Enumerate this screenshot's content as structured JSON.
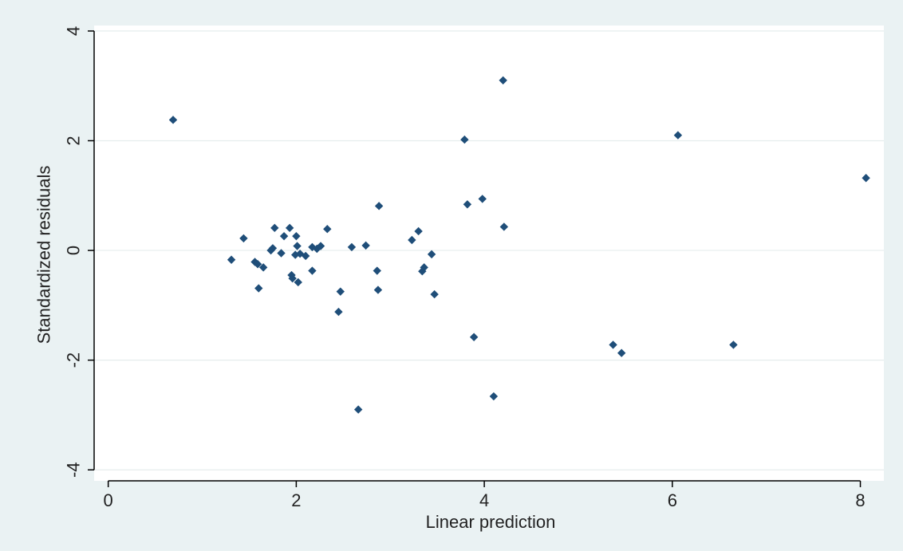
{
  "colors": {
    "outer_background": "#eaf2f3",
    "plot_background": "#ffffff",
    "gridline": "#e6eded",
    "axis": "#000000",
    "marker": "#1f4e79"
  },
  "chart_data": {
    "type": "scatter",
    "title": "",
    "xlabel": "Linear prediction",
    "ylabel": "Standardized residuals",
    "xlim": [
      -0.15,
      8.25
    ],
    "ylim": [
      -4.2,
      4.1
    ],
    "xticks": [
      0,
      2,
      4,
      6,
      8
    ],
    "xtick_labels": [
      "0",
      "2",
      "4",
      "6",
      "8"
    ],
    "yticks": [
      -4,
      -2,
      0,
      2,
      4
    ],
    "ytick_labels": [
      "-4",
      "-2",
      "0",
      "2",
      "4"
    ],
    "grid": "horizontal",
    "legend": "none",
    "marker": "diamond",
    "points": [
      {
        "x": 0.69,
        "y": 2.38
      },
      {
        "x": 1.31,
        "y": -0.17
      },
      {
        "x": 1.44,
        "y": 0.22
      },
      {
        "x": 1.56,
        "y": -0.21
      },
      {
        "x": 1.59,
        "y": -0.25
      },
      {
        "x": 1.6,
        "y": -0.69
      },
      {
        "x": 1.65,
        "y": -0.31
      },
      {
        "x": 1.73,
        "y": 0.0
      },
      {
        "x": 1.75,
        "y": 0.04
      },
      {
        "x": 1.77,
        "y": 0.41
      },
      {
        "x": 1.84,
        "y": -0.05
      },
      {
        "x": 1.87,
        "y": 0.26
      },
      {
        "x": 1.93,
        "y": 0.41
      },
      {
        "x": 1.95,
        "y": -0.45
      },
      {
        "x": 1.96,
        "y": -0.51
      },
      {
        "x": 1.99,
        "y": -0.08
      },
      {
        "x": 2.0,
        "y": 0.26
      },
      {
        "x": 2.01,
        "y": 0.08
      },
      {
        "x": 2.02,
        "y": -0.58
      },
      {
        "x": 2.04,
        "y": -0.06
      },
      {
        "x": 2.1,
        "y": -0.1
      },
      {
        "x": 2.17,
        "y": -0.37
      },
      {
        "x": 2.17,
        "y": 0.06
      },
      {
        "x": 2.22,
        "y": 0.03
      },
      {
        "x": 2.26,
        "y": 0.08
      },
      {
        "x": 2.33,
        "y": 0.39
      },
      {
        "x": 2.45,
        "y": -1.12
      },
      {
        "x": 2.47,
        "y": -0.75
      },
      {
        "x": 2.59,
        "y": 0.06
      },
      {
        "x": 2.66,
        "y": -2.9
      },
      {
        "x": 2.74,
        "y": 0.09
      },
      {
        "x": 2.86,
        "y": -0.37
      },
      {
        "x": 2.87,
        "y": -0.72
      },
      {
        "x": 2.88,
        "y": 0.81
      },
      {
        "x": 3.23,
        "y": 0.19
      },
      {
        "x": 3.3,
        "y": 0.35
      },
      {
        "x": 3.34,
        "y": -0.38
      },
      {
        "x": 3.36,
        "y": -0.31
      },
      {
        "x": 3.44,
        "y": -0.07
      },
      {
        "x": 3.47,
        "y": -0.8
      },
      {
        "x": 3.79,
        "y": 2.02
      },
      {
        "x": 3.82,
        "y": 0.84
      },
      {
        "x": 3.89,
        "y": -1.58
      },
      {
        "x": 3.98,
        "y": 0.94
      },
      {
        "x": 4.1,
        "y": -2.66
      },
      {
        "x": 4.2,
        "y": 3.1
      },
      {
        "x": 4.21,
        "y": 0.43
      },
      {
        "x": 5.37,
        "y": -1.72
      },
      {
        "x": 5.46,
        "y": -1.87
      },
      {
        "x": 6.06,
        "y": 2.1
      },
      {
        "x": 6.65,
        "y": -1.72
      },
      {
        "x": 8.06,
        "y": 1.32
      }
    ]
  }
}
